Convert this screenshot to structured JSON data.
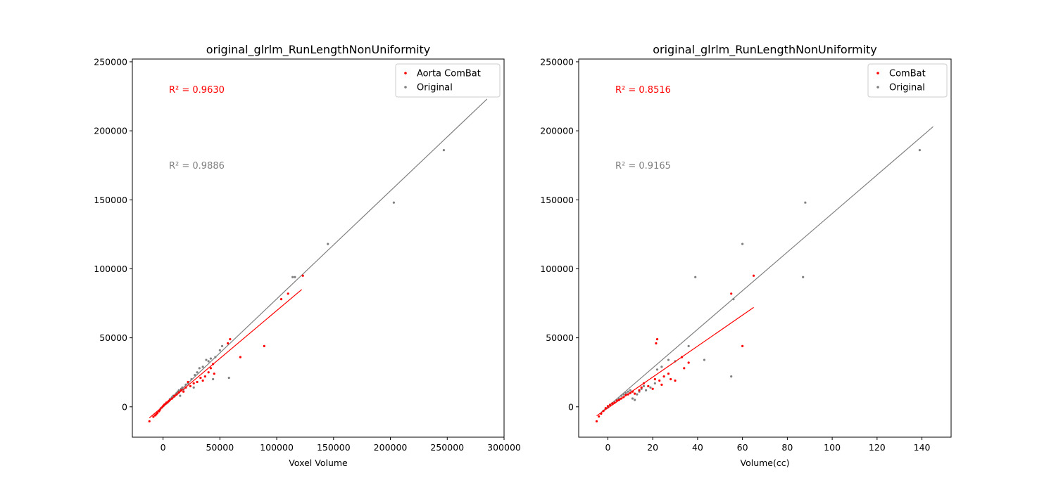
{
  "chart_data": [
    {
      "type": "scatter",
      "title": "original_glrlm_RunLengthNonUniformity",
      "xlabel": "Voxel Volume",
      "ylabel": "",
      "xlim": [
        -27000,
        300000
      ],
      "ylim": [
        -22000,
        252000
      ],
      "xticks": [
        0,
        50000,
        100000,
        150000,
        200000,
        250000,
        300000
      ],
      "yticks": [
        0,
        50000,
        100000,
        150000,
        200000,
        250000
      ],
      "grid": false,
      "legend_position": "top-right",
      "series": [
        {
          "name": "Aorta ComBat",
          "color": "#ff0000",
          "fit_line": {
            "x": [
              -12000,
              122000
            ],
            "y": [
              -8000,
              85000
            ]
          },
          "r2_label": "R² = 0.9630",
          "points": [
            [
              -12000,
              -10500
            ],
            [
              -8500,
              -7200
            ],
            [
              -7000,
              -6200
            ],
            [
              -6000,
              -5500
            ],
            [
              -5000,
              -4500
            ],
            [
              -3500,
              -3200
            ],
            [
              -2500,
              -2000
            ],
            [
              -1000,
              -500
            ],
            [
              0,
              500
            ],
            [
              1000,
              1500
            ],
            [
              2000,
              2000
            ],
            [
              3000,
              3000
            ],
            [
              4000,
              3200
            ],
            [
              5000,
              4200
            ],
            [
              6000,
              5000
            ],
            [
              8000,
              6000
            ],
            [
              10000,
              8000
            ],
            [
              12000,
              9000
            ],
            [
              14000,
              10500
            ],
            [
              16000,
              12000
            ],
            [
              18000,
              11000
            ],
            [
              20000,
              14000
            ],
            [
              22000,
              18000
            ],
            [
              24000,
              15000
            ],
            [
              27000,
              17000
            ],
            [
              30000,
              18000
            ],
            [
              33000,
              21000
            ],
            [
              35000,
              19000
            ],
            [
              37000,
              22000
            ],
            [
              40000,
              25000
            ],
            [
              42000,
              28000
            ],
            [
              44000,
              31000
            ],
            [
              45000,
              24000
            ],
            [
              57000,
              46000
            ],
            [
              59000,
              49000
            ],
            [
              68000,
              36000
            ],
            [
              89000,
              44000
            ],
            [
              104000,
              78000
            ],
            [
              110000,
              82000
            ],
            [
              123000,
              95000
            ]
          ]
        },
        {
          "name": "Original",
          "color": "#808080",
          "fit_line": {
            "x": [
              -5000,
              285000
            ],
            "y": [
              -4000,
              223000
            ]
          },
          "r2_label": "R² = 0.9886",
          "points": [
            [
              -2000,
              -1000
            ],
            [
              500,
              800
            ],
            [
              2000,
              2000
            ],
            [
              3000,
              2500
            ],
            [
              5000,
              4000
            ],
            [
              6000,
              5500
            ],
            [
              7000,
              6000
            ],
            [
              8000,
              7000
            ],
            [
              9000,
              8000
            ],
            [
              10000,
              7500
            ],
            [
              11000,
              9000
            ],
            [
              12000,
              10000
            ],
            [
              13000,
              11000
            ],
            [
              14000,
              12000
            ],
            [
              15000,
              8000
            ],
            [
              16000,
              13000
            ],
            [
              17000,
              14000
            ],
            [
              18000,
              12500
            ],
            [
              20000,
              16000
            ],
            [
              22000,
              17000
            ],
            [
              25000,
              20000
            ],
            [
              27000,
              14000
            ],
            [
              28000,
              23000
            ],
            [
              30000,
              25000
            ],
            [
              32000,
              28000
            ],
            [
              35000,
              29000
            ],
            [
              38000,
              34000
            ],
            [
              40000,
              33000
            ],
            [
              42000,
              35000
            ],
            [
              44000,
              20000
            ],
            [
              46000,
              36000
            ],
            [
              50000,
              41000
            ],
            [
              52000,
              44000
            ],
            [
              58000,
              21000
            ],
            [
              114000,
              94000
            ],
            [
              116000,
              94000
            ],
            [
              145000,
              118000
            ],
            [
              203000,
              148000
            ],
            [
              247000,
              186000
            ]
          ]
        }
      ]
    },
    {
      "type": "scatter",
      "title": "original_glrlm_RunLengthNonUniformity",
      "xlabel": "Volume(cc)",
      "ylabel": "",
      "xlim": [
        -13,
        153
      ],
      "ylim": [
        -22000,
        252000
      ],
      "xticks": [
        0,
        20,
        40,
        60,
        80,
        100,
        120,
        140
      ],
      "yticks": [
        0,
        50000,
        100000,
        150000,
        200000,
        250000
      ],
      "grid": false,
      "legend_position": "top-right",
      "series": [
        {
          "name": "ComBat",
          "color": "#ff0000",
          "fit_line": {
            "x": [
              -5,
              65
            ],
            "y": [
              -6500,
              72000
            ]
          },
          "r2_label": "R² = 0.8516",
          "points": [
            [
              -5,
              -10500
            ],
            [
              -4,
              -7000
            ],
            [
              -3,
              -5000
            ],
            [
              -2,
              -3000
            ],
            [
              -1,
              -1000
            ],
            [
              0,
              500
            ],
            [
              1,
              1500
            ],
            [
              2,
              2500
            ],
            [
              3,
              3000
            ],
            [
              4,
              4500
            ],
            [
              5,
              5000
            ],
            [
              6,
              6000
            ],
            [
              7,
              7000
            ],
            [
              8,
              8500
            ],
            [
              9,
              9000
            ],
            [
              10,
              10000
            ],
            [
              11,
              11000
            ],
            [
              12,
              9500
            ],
            [
              14,
              12000
            ],
            [
              15,
              14000
            ],
            [
              16,
              17000
            ],
            [
              18,
              15000
            ],
            [
              20,
              13000
            ],
            [
              21,
              20000
            ],
            [
              21.5,
              46000
            ],
            [
              22,
              49000
            ],
            [
              23,
              19000
            ],
            [
              24,
              16000
            ],
            [
              25,
              22000
            ],
            [
              27,
              24000
            ],
            [
              28,
              20000
            ],
            [
              30,
              19000
            ],
            [
              33,
              36000
            ],
            [
              34,
              28000
            ],
            [
              36,
              32000
            ],
            [
              55,
              82000
            ],
            [
              60,
              44000
            ],
            [
              65,
              95000
            ]
          ]
        },
        {
          "name": "Original",
          "color": "#808080",
          "fit_line": {
            "x": [
              -3,
              145
            ],
            "y": [
              -4000,
              203000
            ]
          },
          "r2_label": "R² = 0.9165",
          "points": [
            [
              0,
              -500
            ],
            [
              1,
              1000
            ],
            [
              2,
              2000
            ],
            [
              3,
              3500
            ],
            [
              4,
              5000
            ],
            [
              5,
              6000
            ],
            [
              6,
              8000
            ],
            [
              7,
              9000
            ],
            [
              8,
              10000
            ],
            [
              9,
              11000
            ],
            [
              10,
              12000
            ],
            [
              11,
              6000
            ],
            [
              12,
              5000
            ],
            [
              13,
              9000
            ],
            [
              14,
              11000
            ],
            [
              15,
              13000
            ],
            [
              16,
              15000
            ],
            [
              17,
              12000
            ],
            [
              19,
              14000
            ],
            [
              21,
              17000
            ],
            [
              22,
              27000
            ],
            [
              24,
              29000
            ],
            [
              27,
              34000
            ],
            [
              30,
              33000
            ],
            [
              36,
              44000
            ],
            [
              39,
              94000
            ],
            [
              43,
              34000
            ],
            [
              55,
              22000
            ],
            [
              56,
              78000
            ],
            [
              60,
              118000
            ],
            [
              87,
              94000
            ],
            [
              88,
              148000
            ],
            [
              139,
              186000
            ]
          ]
        }
      ]
    }
  ]
}
